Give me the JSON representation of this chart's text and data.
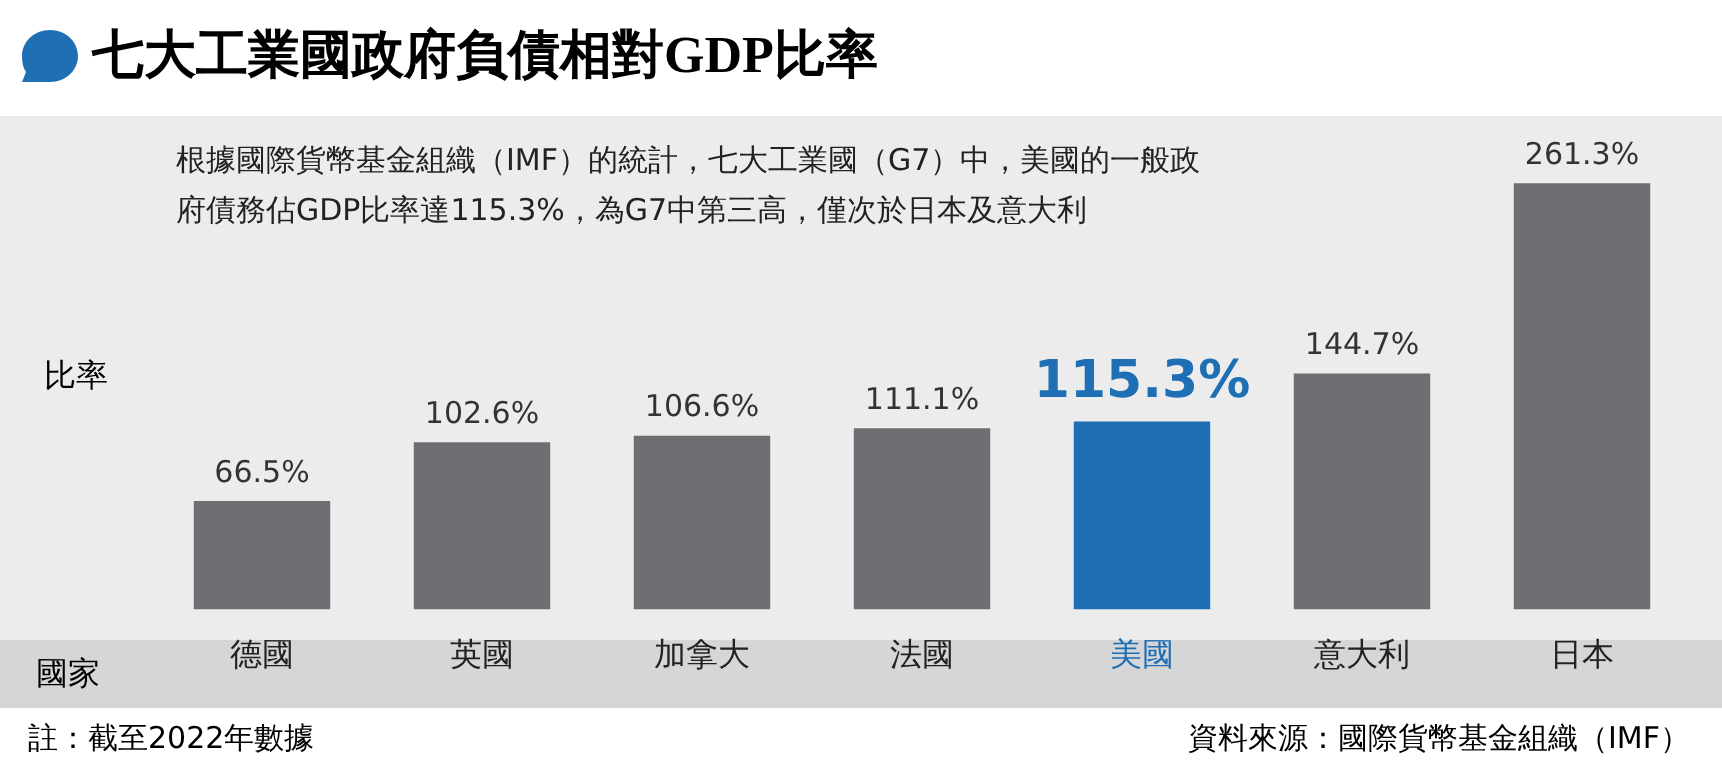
{
  "chart_data": {
    "type": "bar",
    "title": "七大工業國政府負債相對GDP比率",
    "xlabel": "國家",
    "ylabel": "比率",
    "categories": [
      "德國",
      "英國",
      "加拿大",
      "法國",
      "美國",
      "意大利",
      "日本"
    ],
    "values": [
      66.5,
      102.6,
      106.6,
      111.1,
      115.3,
      144.7,
      261.3
    ],
    "colors": [
      "#6d6e71",
      "#6d6e71",
      "#6d6e71",
      "#6d6e71",
      "#1f6fb5",
      "#6d6e71",
      "#6d6e71"
    ],
    "value_labels": [
      "66.5%",
      "102.6%",
      "106.6%",
      "111.1%",
      "115.3%",
      "144.7%",
      "261.3%"
    ],
    "annotations": [
      "根據國際貨幣基金組織（IMF）的統計，七大工業國（G7）中，美國的一般政府債務佔GDP比率達115.3%，為G7中第三高，僅次於日本及意大利",
      "註：截至2022年數據",
      "資料來源：國際貨幣基金組織（IMF）"
    ],
    "grid": false,
    "legend": false
  }
}
